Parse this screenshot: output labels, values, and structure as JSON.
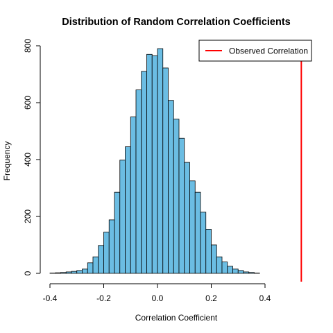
{
  "chart_data": {
    "type": "bar",
    "title": "Distribution of Random Correlation Coefficients",
    "xlabel": "Correlation Coefficient",
    "ylabel": "Frequency",
    "xlim": [
      -0.425,
      0.53
    ],
    "ylim": [
      0,
      800
    ],
    "bin_width": 0.02,
    "bin_starts": [
      -0.4,
      -0.38,
      -0.36,
      -0.34,
      -0.32,
      -0.3,
      -0.28,
      -0.26,
      -0.24,
      -0.22,
      -0.2,
      -0.18,
      -0.16,
      -0.14,
      -0.12,
      -0.1,
      -0.08,
      -0.06,
      -0.04,
      -0.02,
      0.0,
      0.02,
      0.04,
      0.06,
      0.08,
      0.1,
      0.12,
      0.14,
      0.16,
      0.18,
      0.2,
      0.22,
      0.24,
      0.26,
      0.28,
      0.3,
      0.32,
      0.34,
      0.36
    ],
    "values": [
      1,
      2,
      3,
      5,
      7,
      10,
      15,
      37,
      58,
      98,
      145,
      188,
      285,
      398,
      445,
      550,
      645,
      710,
      770,
      765,
      790,
      722,
      608,
      542,
      475,
      390,
      325,
      285,
      215,
      155,
      100,
      58,
      40,
      25,
      15,
      10,
      5,
      3,
      1
    ],
    "x_ticks": [
      "-0.4",
      "-0.2",
      "0.0",
      "0.2",
      "0.4"
    ],
    "y_ticks": [
      "0",
      "200",
      "400",
      "600",
      "800"
    ],
    "observed_correlation": 0.535,
    "legend": {
      "entries": [
        "Observed Correlation"
      ],
      "position": "top-right"
    },
    "colors": {
      "bar_fill": "#6bbde3",
      "bar_stroke": "#000000",
      "observed_line": "#ff0000"
    },
    "grid": false
  }
}
